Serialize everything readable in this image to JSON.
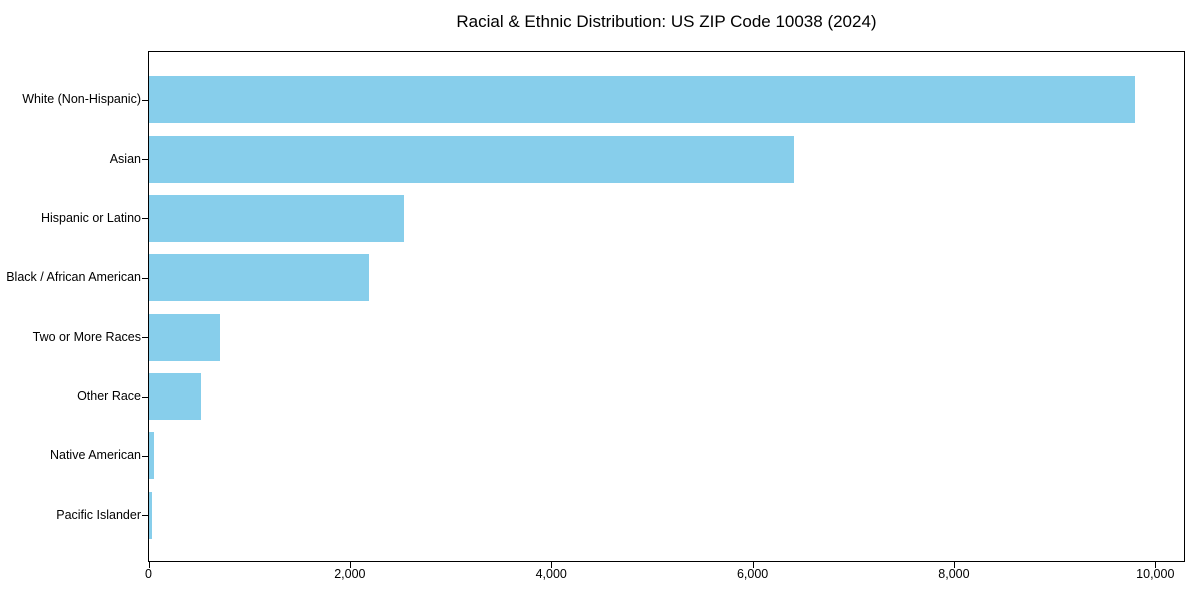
{
  "chart_data": {
    "type": "bar",
    "orientation": "horizontal",
    "title": "Racial & Ethnic Distribution: US ZIP Code 10038 (2024)",
    "categories": [
      "White (Non-Hispanic)",
      "Asian",
      "Hispanic or Latino",
      "Black / African American",
      "Two or More Races",
      "Other Race",
      "Native American",
      "Pacific Islander"
    ],
    "values": [
      9800,
      6410,
      2540,
      2190,
      710,
      520,
      50,
      30
    ],
    "xlabel": "",
    "ylabel": "",
    "xlim": [
      0,
      10290
    ],
    "xticks": [
      0,
      2000,
      4000,
      6000,
      8000,
      10000
    ],
    "xtick_labels": [
      "0",
      "2,000",
      "4,000",
      "6,000",
      "8,000",
      "10,000"
    ],
    "grid": false,
    "legend": "none",
    "bar_color": "#87CEEB",
    "axis_color": "#000000",
    "background_color": "#ffffff"
  }
}
